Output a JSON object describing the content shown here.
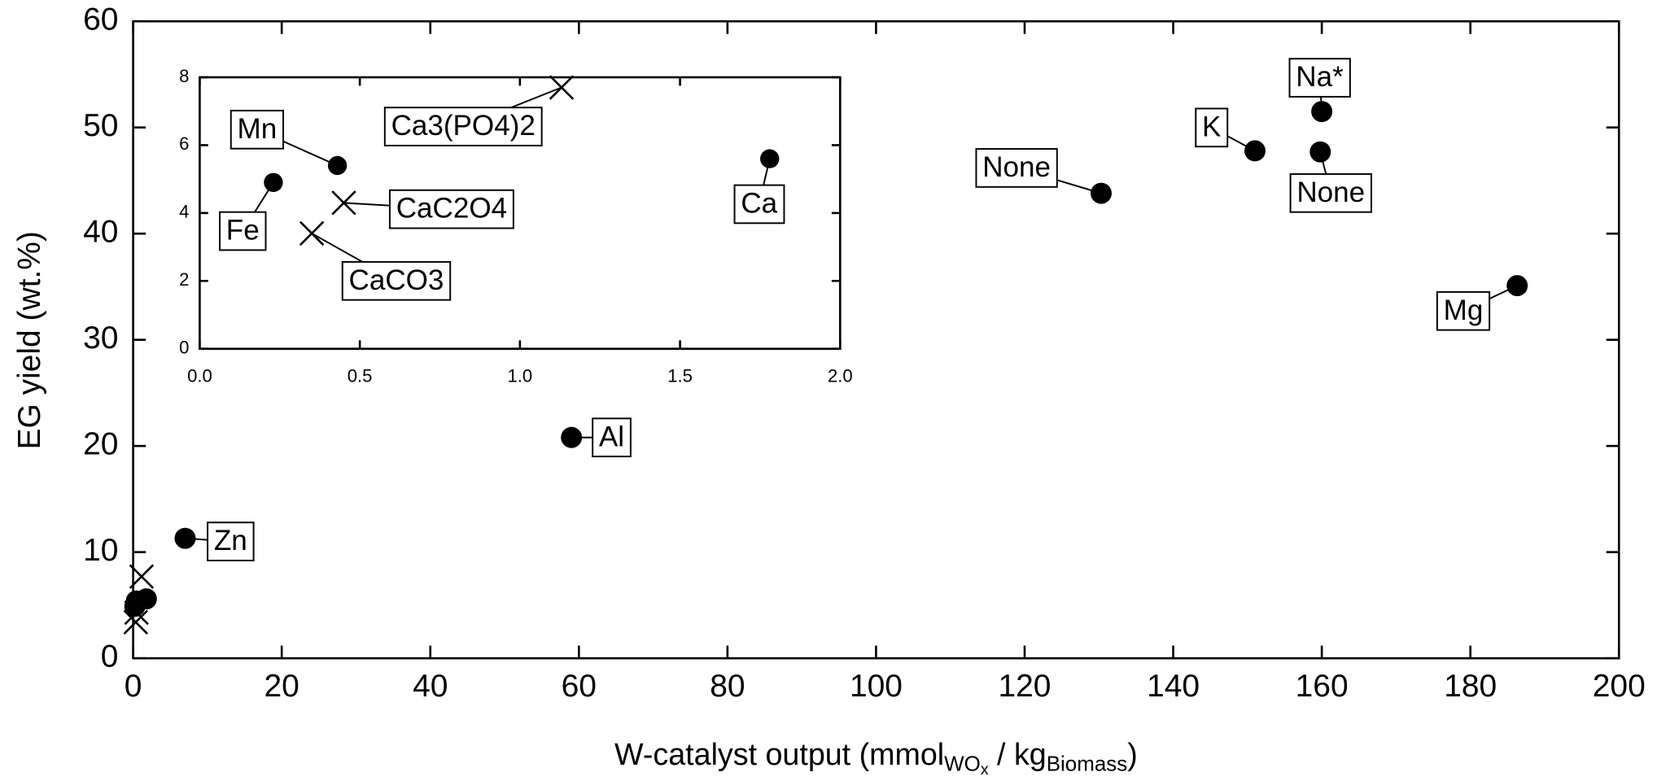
{
  "chart_data": [
    {
      "type": "scatter",
      "x_label": [
        "W-catalyst output (mmol",
        "WO",
        "x",
        " / kg",
        "Biomass",
        ")"
      ],
      "y_label": "EG yield (wt.%)",
      "xlim": [
        0,
        200
      ],
      "ylim": [
        0,
        60
      ],
      "xticks": [
        0,
        20,
        40,
        60,
        80,
        100,
        120,
        140,
        160,
        180,
        200
      ],
      "yticks": [
        0,
        10,
        20,
        30,
        40,
        50,
        60
      ],
      "series": [
        {
          "marker": "circle",
          "color": "#000000",
          "x": [
            0.23,
            0.43,
            1.78,
            7,
            59,
            130.3,
            151,
            160,
            159.8,
            186.3
          ],
          "values": [
            4.9,
            5.4,
            5.6,
            11.3,
            20.8,
            43.8,
            47.8,
            51.5,
            47.7,
            35.1
          ],
          "labels": [
            null,
            null,
            null,
            "Zn",
            "Al",
            "None",
            "K",
            "Na*",
            "None",
            "Mg"
          ]
        },
        {
          "marker": "cross",
          "color": "#000000",
          "x": [
            1.13,
            0.45,
            0.35
          ],
          "values": [
            7.7,
            4.3,
            3.4
          ],
          "labels": [
            null,
            null,
            null
          ]
        }
      ]
    },
    {
      "type": "scatter",
      "xlim": [
        0,
        2
      ],
      "ylim": [
        0,
        8
      ],
      "xticks": [
        {
          "value": 0,
          "label": "0.0"
        },
        {
          "value": 0.5,
          "label": "0.5"
        },
        {
          "value": 1,
          "label": "1.0"
        },
        {
          "value": 1.5,
          "label": "1.5"
        },
        {
          "value": 2,
          "label": "2.0"
        }
      ],
      "yticks": [
        0,
        2,
        4,
        6,
        8
      ],
      "series": [
        {
          "marker": "circle",
          "color": "#000000",
          "x": [
            0.23,
            0.43,
            1.78
          ],
          "values": [
            4.9,
            5.4,
            5.6
          ],
          "labels": [
            "Fe",
            "Mn",
            "Ca"
          ]
        },
        {
          "marker": "cross",
          "color": "#000000",
          "x": [
            1.13,
            0.45,
            0.35
          ],
          "values": [
            7.7,
            4.3,
            3.4
          ],
          "labels": [
            "Ca3(PO4)2",
            "CaC2O4",
            "CaCO3"
          ]
        }
      ]
    }
  ]
}
